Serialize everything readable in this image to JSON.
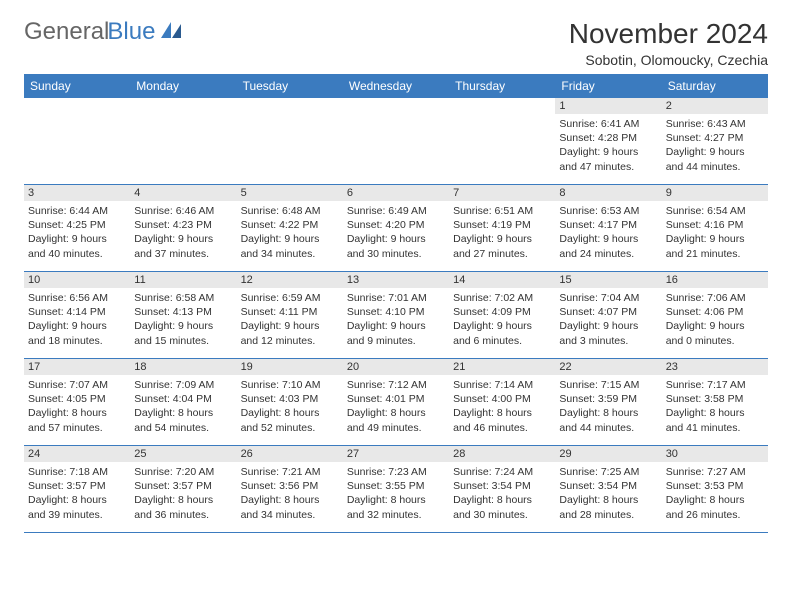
{
  "logo": {
    "text_general": "General",
    "text_blue": "Blue",
    "accent_color": "#3b7bbf",
    "muted_color": "#666666"
  },
  "title": "November 2024",
  "location": "Sobotin, Olomoucky, Czechia",
  "weekdays": [
    "Sunday",
    "Monday",
    "Tuesday",
    "Wednesday",
    "Thursday",
    "Friday",
    "Saturday"
  ],
  "colors": {
    "header_bar": "#3b7bbf",
    "header_text": "#ffffff",
    "day_number_bg": "#e8e8e8",
    "text": "#333333",
    "row_border": "#3b7bbf"
  },
  "weeks": [
    [
      null,
      null,
      null,
      null,
      null,
      {
        "num": "1",
        "sunrise": "Sunrise: 6:41 AM",
        "sunset": "Sunset: 4:28 PM",
        "daylight1": "Daylight: 9 hours",
        "daylight2": "and 47 minutes."
      },
      {
        "num": "2",
        "sunrise": "Sunrise: 6:43 AM",
        "sunset": "Sunset: 4:27 PM",
        "daylight1": "Daylight: 9 hours",
        "daylight2": "and 44 minutes."
      }
    ],
    [
      {
        "num": "3",
        "sunrise": "Sunrise: 6:44 AM",
        "sunset": "Sunset: 4:25 PM",
        "daylight1": "Daylight: 9 hours",
        "daylight2": "and 40 minutes."
      },
      {
        "num": "4",
        "sunrise": "Sunrise: 6:46 AM",
        "sunset": "Sunset: 4:23 PM",
        "daylight1": "Daylight: 9 hours",
        "daylight2": "and 37 minutes."
      },
      {
        "num": "5",
        "sunrise": "Sunrise: 6:48 AM",
        "sunset": "Sunset: 4:22 PM",
        "daylight1": "Daylight: 9 hours",
        "daylight2": "and 34 minutes."
      },
      {
        "num": "6",
        "sunrise": "Sunrise: 6:49 AM",
        "sunset": "Sunset: 4:20 PM",
        "daylight1": "Daylight: 9 hours",
        "daylight2": "and 30 minutes."
      },
      {
        "num": "7",
        "sunrise": "Sunrise: 6:51 AM",
        "sunset": "Sunset: 4:19 PM",
        "daylight1": "Daylight: 9 hours",
        "daylight2": "and 27 minutes."
      },
      {
        "num": "8",
        "sunrise": "Sunrise: 6:53 AM",
        "sunset": "Sunset: 4:17 PM",
        "daylight1": "Daylight: 9 hours",
        "daylight2": "and 24 minutes."
      },
      {
        "num": "9",
        "sunrise": "Sunrise: 6:54 AM",
        "sunset": "Sunset: 4:16 PM",
        "daylight1": "Daylight: 9 hours",
        "daylight2": "and 21 minutes."
      }
    ],
    [
      {
        "num": "10",
        "sunrise": "Sunrise: 6:56 AM",
        "sunset": "Sunset: 4:14 PM",
        "daylight1": "Daylight: 9 hours",
        "daylight2": "and 18 minutes."
      },
      {
        "num": "11",
        "sunrise": "Sunrise: 6:58 AM",
        "sunset": "Sunset: 4:13 PM",
        "daylight1": "Daylight: 9 hours",
        "daylight2": "and 15 minutes."
      },
      {
        "num": "12",
        "sunrise": "Sunrise: 6:59 AM",
        "sunset": "Sunset: 4:11 PM",
        "daylight1": "Daylight: 9 hours",
        "daylight2": "and 12 minutes."
      },
      {
        "num": "13",
        "sunrise": "Sunrise: 7:01 AM",
        "sunset": "Sunset: 4:10 PM",
        "daylight1": "Daylight: 9 hours",
        "daylight2": "and 9 minutes."
      },
      {
        "num": "14",
        "sunrise": "Sunrise: 7:02 AM",
        "sunset": "Sunset: 4:09 PM",
        "daylight1": "Daylight: 9 hours",
        "daylight2": "and 6 minutes."
      },
      {
        "num": "15",
        "sunrise": "Sunrise: 7:04 AM",
        "sunset": "Sunset: 4:07 PM",
        "daylight1": "Daylight: 9 hours",
        "daylight2": "and 3 minutes."
      },
      {
        "num": "16",
        "sunrise": "Sunrise: 7:06 AM",
        "sunset": "Sunset: 4:06 PM",
        "daylight1": "Daylight: 9 hours",
        "daylight2": "and 0 minutes."
      }
    ],
    [
      {
        "num": "17",
        "sunrise": "Sunrise: 7:07 AM",
        "sunset": "Sunset: 4:05 PM",
        "daylight1": "Daylight: 8 hours",
        "daylight2": "and 57 minutes."
      },
      {
        "num": "18",
        "sunrise": "Sunrise: 7:09 AM",
        "sunset": "Sunset: 4:04 PM",
        "daylight1": "Daylight: 8 hours",
        "daylight2": "and 54 minutes."
      },
      {
        "num": "19",
        "sunrise": "Sunrise: 7:10 AM",
        "sunset": "Sunset: 4:03 PM",
        "daylight1": "Daylight: 8 hours",
        "daylight2": "and 52 minutes."
      },
      {
        "num": "20",
        "sunrise": "Sunrise: 7:12 AM",
        "sunset": "Sunset: 4:01 PM",
        "daylight1": "Daylight: 8 hours",
        "daylight2": "and 49 minutes."
      },
      {
        "num": "21",
        "sunrise": "Sunrise: 7:14 AM",
        "sunset": "Sunset: 4:00 PM",
        "daylight1": "Daylight: 8 hours",
        "daylight2": "and 46 minutes."
      },
      {
        "num": "22",
        "sunrise": "Sunrise: 7:15 AM",
        "sunset": "Sunset: 3:59 PM",
        "daylight1": "Daylight: 8 hours",
        "daylight2": "and 44 minutes."
      },
      {
        "num": "23",
        "sunrise": "Sunrise: 7:17 AM",
        "sunset": "Sunset: 3:58 PM",
        "daylight1": "Daylight: 8 hours",
        "daylight2": "and 41 minutes."
      }
    ],
    [
      {
        "num": "24",
        "sunrise": "Sunrise: 7:18 AM",
        "sunset": "Sunset: 3:57 PM",
        "daylight1": "Daylight: 8 hours",
        "daylight2": "and 39 minutes."
      },
      {
        "num": "25",
        "sunrise": "Sunrise: 7:20 AM",
        "sunset": "Sunset: 3:57 PM",
        "daylight1": "Daylight: 8 hours",
        "daylight2": "and 36 minutes."
      },
      {
        "num": "26",
        "sunrise": "Sunrise: 7:21 AM",
        "sunset": "Sunset: 3:56 PM",
        "daylight1": "Daylight: 8 hours",
        "daylight2": "and 34 minutes."
      },
      {
        "num": "27",
        "sunrise": "Sunrise: 7:23 AM",
        "sunset": "Sunset: 3:55 PM",
        "daylight1": "Daylight: 8 hours",
        "daylight2": "and 32 minutes."
      },
      {
        "num": "28",
        "sunrise": "Sunrise: 7:24 AM",
        "sunset": "Sunset: 3:54 PM",
        "daylight1": "Daylight: 8 hours",
        "daylight2": "and 30 minutes."
      },
      {
        "num": "29",
        "sunrise": "Sunrise: 7:25 AM",
        "sunset": "Sunset: 3:54 PM",
        "daylight1": "Daylight: 8 hours",
        "daylight2": "and 28 minutes."
      },
      {
        "num": "30",
        "sunrise": "Sunrise: 7:27 AM",
        "sunset": "Sunset: 3:53 PM",
        "daylight1": "Daylight: 8 hours",
        "daylight2": "and 26 minutes."
      }
    ]
  ]
}
